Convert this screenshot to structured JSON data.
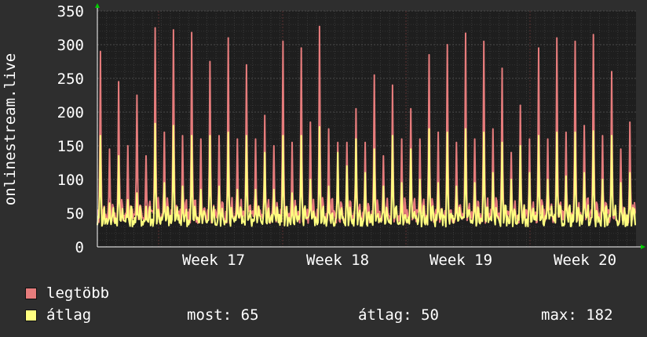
{
  "chart_data": {
    "type": "area",
    "ylabel": "onlinestream.live",
    "xlabel": "",
    "ylim": [
      0,
      350
    ],
    "yticks": [
      0,
      50,
      100,
      150,
      200,
      250,
      300,
      350
    ],
    "grid": true,
    "x_ticks": [
      "Week 17",
      "Week 18",
      "Week 19",
      "Week 20"
    ],
    "colors": {
      "background": "#2e2e2e",
      "plot_background": "#1e1e1e",
      "max_series": "#e67c7c",
      "avg_series": "#ffff80",
      "grid": "#4a4a4a",
      "axis_arrow": "#00cc00"
    },
    "series": [
      {
        "name": "legtöbb",
        "color": "#e67c7c",
        "peaks": [
          290,
          145,
          245,
          150,
          225,
          135,
          325,
          170,
          322,
          165,
          318,
          160,
          275,
          165,
          310,
          160,
          270,
          160,
          195,
          150,
          305,
          155,
          295,
          185,
          327,
          175,
          155,
          155,
          205,
          155,
          255,
          135,
          240,
          160,
          205,
          160,
          285,
          170,
          300,
          155,
          317,
          160,
          305,
          175,
          265,
          140,
          210,
          160,
          295,
          160,
          310,
          170,
          305,
          180,
          315,
          165,
          260,
          145,
          185
        ],
        "base_level": 35,
        "description": "maximum values, one peak per day over ~4.5 weeks"
      },
      {
        "name": "átlag",
        "color": "#ffff80",
        "peaks": [
          165,
          65,
          135,
          70,
          80,
          60,
          183,
          95,
          180,
          90,
          165,
          85,
          165,
          90,
          170,
          85,
          165,
          85,
          140,
          85,
          165,
          80,
          165,
          100,
          178,
          90,
          140,
          120,
          160,
          110,
          145,
          90,
          165,
          95,
          145,
          100,
          175,
          95,
          170,
          90,
          175,
          95,
          170,
          110,
          155,
          100,
          150,
          110,
          165,
          100,
          170,
          105,
          170,
          110,
          172,
          100,
          165,
          95,
          110
        ],
        "base_level": 30,
        "description": "average values"
      }
    ]
  },
  "legend": {
    "max_label": "legtöbb",
    "avg_label": "átlag"
  },
  "stats": {
    "current": "most: 65",
    "average": "átlag: 50",
    "max": "max: 182"
  }
}
